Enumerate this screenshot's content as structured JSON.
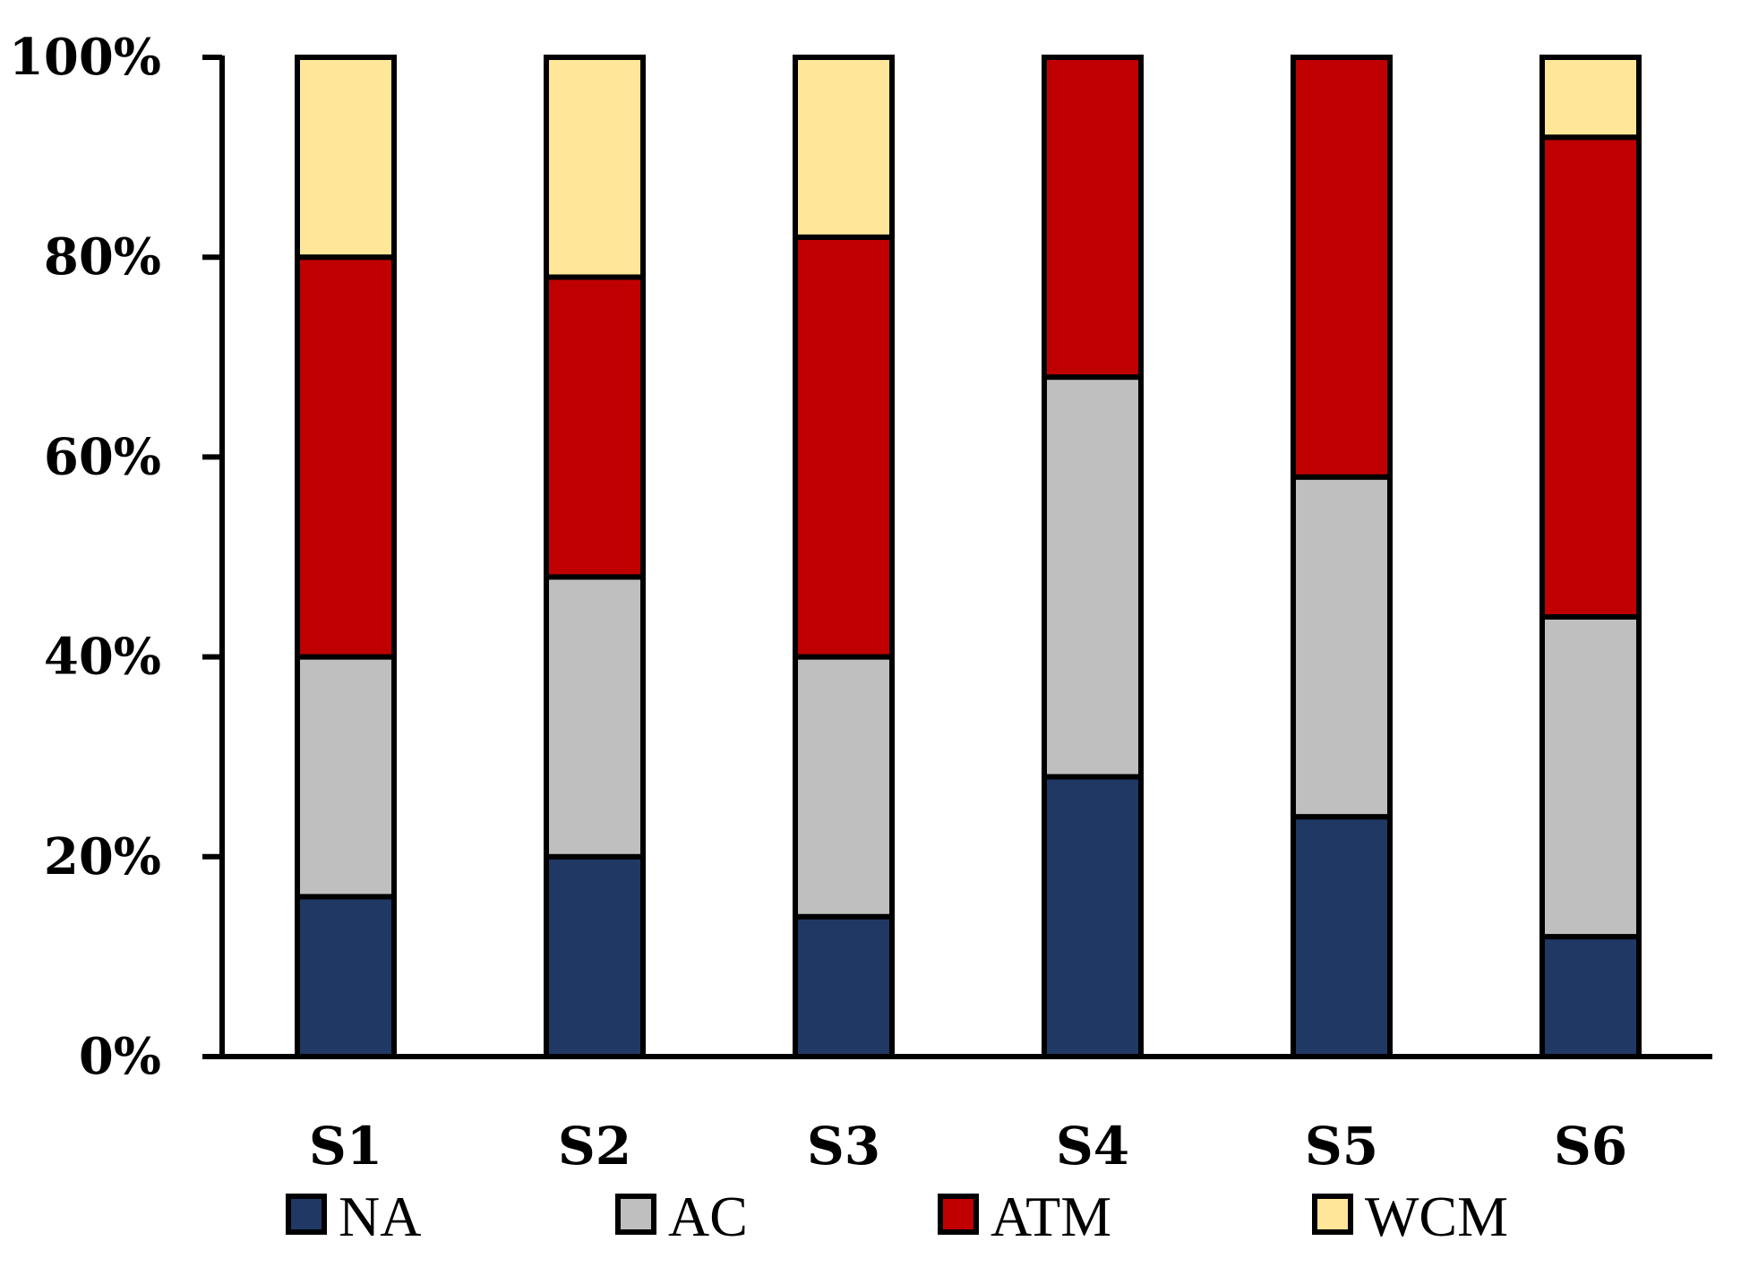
{
  "chart_data": {
    "type": "bar",
    "stacked": true,
    "normalized": true,
    "title": "",
    "xlabel": "",
    "ylabel": "",
    "ylim": [
      0,
      100
    ],
    "yticks": [
      "0%",
      "20%",
      "40%",
      "60%",
      "80%",
      "100%"
    ],
    "categories": [
      "S1",
      "S2",
      "S3",
      "S4",
      "S5",
      "S6"
    ],
    "series": [
      {
        "name": "NA",
        "color": "#203864",
        "values": [
          16,
          20,
          14,
          28,
          24,
          12
        ]
      },
      {
        "name": "AC",
        "color": "#bfbfbf",
        "values": [
          24,
          28,
          26,
          40,
          34,
          32
        ]
      },
      {
        "name": "ATM",
        "color": "#c00000",
        "values": [
          40,
          30,
          42,
          32,
          42,
          48
        ]
      },
      {
        "name": "WCM",
        "color": "#ffe699",
        "values": [
          20,
          22,
          18,
          0,
          0,
          8
        ]
      }
    ],
    "legend": {
      "position": "bottom"
    },
    "grid": false
  }
}
